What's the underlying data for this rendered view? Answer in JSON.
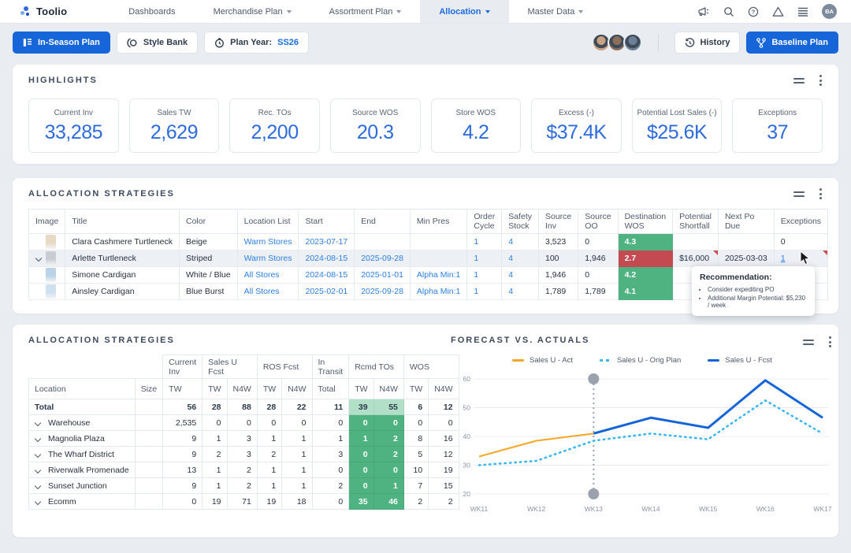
{
  "topnav": {
    "brand": "Toolio",
    "items": [
      {
        "label": "Dashboards",
        "caret": false,
        "active": false
      },
      {
        "label": "Merchandise Plan",
        "caret": true,
        "active": false
      },
      {
        "label": "Assortment Plan",
        "caret": true,
        "active": false
      },
      {
        "label": "Allocation",
        "caret": true,
        "active": true
      },
      {
        "label": "Master Data",
        "caret": true,
        "active": false
      }
    ],
    "icons": [
      "megaphone-icon",
      "search-icon",
      "help-icon",
      "warning-icon",
      "menu-icon"
    ],
    "user_initials": "BA"
  },
  "toolbar": {
    "in_season_label": "In-Season Plan",
    "style_bank_label": "Style Bank",
    "plan_year_label": "Plan Year:",
    "plan_year_value": "SS26",
    "history_label": "History",
    "baseline_label": "Baseline Plan",
    "avatar_colors": [
      "#c9a282",
      "#8c6f5a",
      "#6b7f95"
    ]
  },
  "highlights": {
    "title": "HIGHLIGHTS",
    "cards": [
      {
        "label": "Current Inv",
        "value": "33,285"
      },
      {
        "label": "Sales TW",
        "value": "2,629"
      },
      {
        "label": "Rec. TOs",
        "value": "2,200"
      },
      {
        "label": "Source WOS",
        "value": "20.3"
      },
      {
        "label": "Store WOS",
        "value": "4.2"
      },
      {
        "label": "Excess (-)",
        "value": "$37.4K"
      },
      {
        "label": "Potential Lost Sales (-)",
        "value": "$25.6K"
      },
      {
        "label": "Exceptions",
        "value": "37"
      }
    ]
  },
  "alloc_table": {
    "title": "ALLOCATION STRATEGIES",
    "columns": [
      "Image",
      "Title",
      "Color",
      "Location List",
      "Start",
      "End",
      "Min Pres",
      "Order Cycle",
      "Safety Stock",
      "Source Inv",
      "Source OO",
      "Destination WOS",
      "Potential Shortfall",
      "Next Po Due",
      "Exceptions"
    ],
    "rows": [
      {
        "title": "Clara Cashmere Turtleneck",
        "color": "Beige",
        "image_color": "#e8d9c4",
        "location_list": "Warm Stores",
        "start": "2023-07-17",
        "end": "",
        "min_pres": "",
        "order_cycle": "1",
        "safety_stock": "4",
        "source_inv": "3,523",
        "source_oo": "0",
        "wos": "4.3",
        "wos_state": "good",
        "shortfall": "",
        "next_po": "",
        "exceptions": "0",
        "expanded": false,
        "highlighted": false,
        "shortfall_flag": false,
        "exceptions_flag": false,
        "exceptions_link": false
      },
      {
        "title": "Arlette Turtleneck",
        "color": "Striped",
        "image_color": "#c9ccd1",
        "location_list": "Warm Stores",
        "start": "2024-08-15",
        "end": "2025-09-28",
        "min_pres": "",
        "order_cycle": "1",
        "safety_stock": "4",
        "source_inv": "100",
        "source_oo": "1,946",
        "wos": "2.7",
        "wos_state": "bad",
        "shortfall": "$16,000",
        "next_po": "2025-03-03",
        "exceptions": "1",
        "expanded": true,
        "highlighted": true,
        "shortfall_flag": true,
        "exceptions_flag": true,
        "exceptions_link": true
      },
      {
        "title": "Simone Cardigan",
        "color": "White / Blue",
        "image_color": "#bcd2e6",
        "location_list": "All Stores",
        "start": "2024-08-15",
        "end": "2025-01-01",
        "min_pres": "Alpha Min:1",
        "order_cycle": "1",
        "safety_stock": "4",
        "source_inv": "1,946",
        "source_oo": "0",
        "wos": "4.2",
        "wos_state": "good",
        "shortfall": "",
        "next_po": "",
        "exceptions": "",
        "expanded": false,
        "highlighted": false,
        "shortfall_flag": false,
        "exceptions_flag": false,
        "exceptions_link": false
      },
      {
        "title": "Ainsley Cardigan",
        "color": "Blue Burst",
        "image_color": "#cfe0f0",
        "location_list": "All Stores",
        "start": "2025-02-01",
        "end": "2025-09-28",
        "min_pres": "Alpha Min:1",
        "order_cycle": "1",
        "safety_stock": "4",
        "source_inv": "1,789",
        "source_oo": "1,789",
        "wos": "4.1",
        "wos_state": "good",
        "shortfall": "",
        "next_po": "",
        "exceptions": "",
        "expanded": false,
        "highlighted": false,
        "shortfall_flag": false,
        "exceptions_flag": false,
        "exceptions_link": false
      }
    ],
    "tooltip": {
      "heading": "Recommendation:",
      "items": [
        "Consider expediting PO",
        "Additional Margin Potential: $5,230 / week"
      ]
    },
    "status_colors": {
      "good": "#4eb381",
      "bad": "#c44a52"
    }
  },
  "loc_table": {
    "title": "ALLOCATION STRATEGIES",
    "groups": [
      "Current Inv",
      "Sales U Fcst",
      "ROS Fcst",
      "In Transit",
      "Rcmd TOs",
      "WOS"
    ],
    "group_spans": [
      1,
      2,
      2,
      1,
      2,
      2
    ],
    "sub_columns": [
      "Location",
      "Size",
      "TW",
      "TW",
      "N4W",
      "TW",
      "N4W",
      "Total",
      "TW",
      "N4W",
      "TW",
      "N4W"
    ],
    "rows": [
      {
        "label": "Total",
        "is_total": true,
        "chevron": false,
        "values": [
          "56",
          "28",
          "88",
          "28",
          "22",
          "11",
          "39",
          "55",
          "6",
          "12"
        ]
      },
      {
        "label": "Warehouse",
        "is_total": false,
        "chevron": true,
        "values": [
          "2,535",
          "0",
          "0",
          "0",
          "0",
          "0",
          "0",
          "0",
          "0",
          "0"
        ]
      },
      {
        "label": "Magnolia Plaza",
        "is_total": false,
        "chevron": true,
        "values": [
          "9",
          "1",
          "3",
          "1",
          "1",
          "1",
          "1",
          "2",
          "8",
          "16"
        ]
      },
      {
        "label": "The Wharf District",
        "is_total": false,
        "chevron": true,
        "values": [
          "9",
          "2",
          "3",
          "2",
          "1",
          "3",
          "0",
          "2",
          "5",
          "12"
        ]
      },
      {
        "label": "Riverwalk Promenade",
        "is_total": false,
        "chevron": true,
        "values": [
          "13",
          "1",
          "2",
          "1",
          "1",
          "0",
          "0",
          "0",
          "10",
          "19"
        ]
      },
      {
        "label": "Sunset Junction",
        "is_total": false,
        "chevron": true,
        "values": [
          "9",
          "1",
          "2",
          "1",
          "1",
          "2",
          "0",
          "1",
          "7",
          "15"
        ]
      },
      {
        "label": "Ecomm",
        "is_total": false,
        "chevron": true,
        "values": [
          "0",
          "19",
          "71",
          "19",
          "18",
          "0",
          "35",
          "46",
          "2",
          "2"
        ]
      }
    ],
    "highlight_value_cols": [
      6,
      7
    ]
  },
  "chart_section_title": "FORECAST VS. ACTUALS",
  "chart_data": {
    "type": "line",
    "x": [
      "WK11",
      "WK12",
      "WK13",
      "WK14",
      "WK15",
      "WK16",
      "WK17"
    ],
    "series": [
      {
        "name": "Sales U - Act",
        "color": "#f5a623",
        "style": "solid",
        "width": 2,
        "values": [
          33,
          38.5,
          41,
          null,
          null,
          null,
          null
        ]
      },
      {
        "name": "Sales U - Orig Plan",
        "color": "#35b6f2",
        "style": "dotted",
        "width": 2.5,
        "values": [
          30,
          31.5,
          38.5,
          41,
          39,
          52.5,
          41
        ]
      },
      {
        "name": "Sales U - Fcst",
        "color": "#1565d8",
        "style": "solid",
        "width": 3,
        "values": [
          null,
          null,
          41,
          46.5,
          43,
          59.5,
          46.5
        ]
      }
    ],
    "title": "FORECAST VS. ACTUALS",
    "xlabel": "",
    "ylabel": "",
    "ylim": [
      20,
      60
    ],
    "yticks": [
      20,
      30,
      40,
      50,
      60
    ],
    "grid": true,
    "legend_position": "top",
    "marker_x": "WK13",
    "marker_color": "#9aa3ad"
  }
}
